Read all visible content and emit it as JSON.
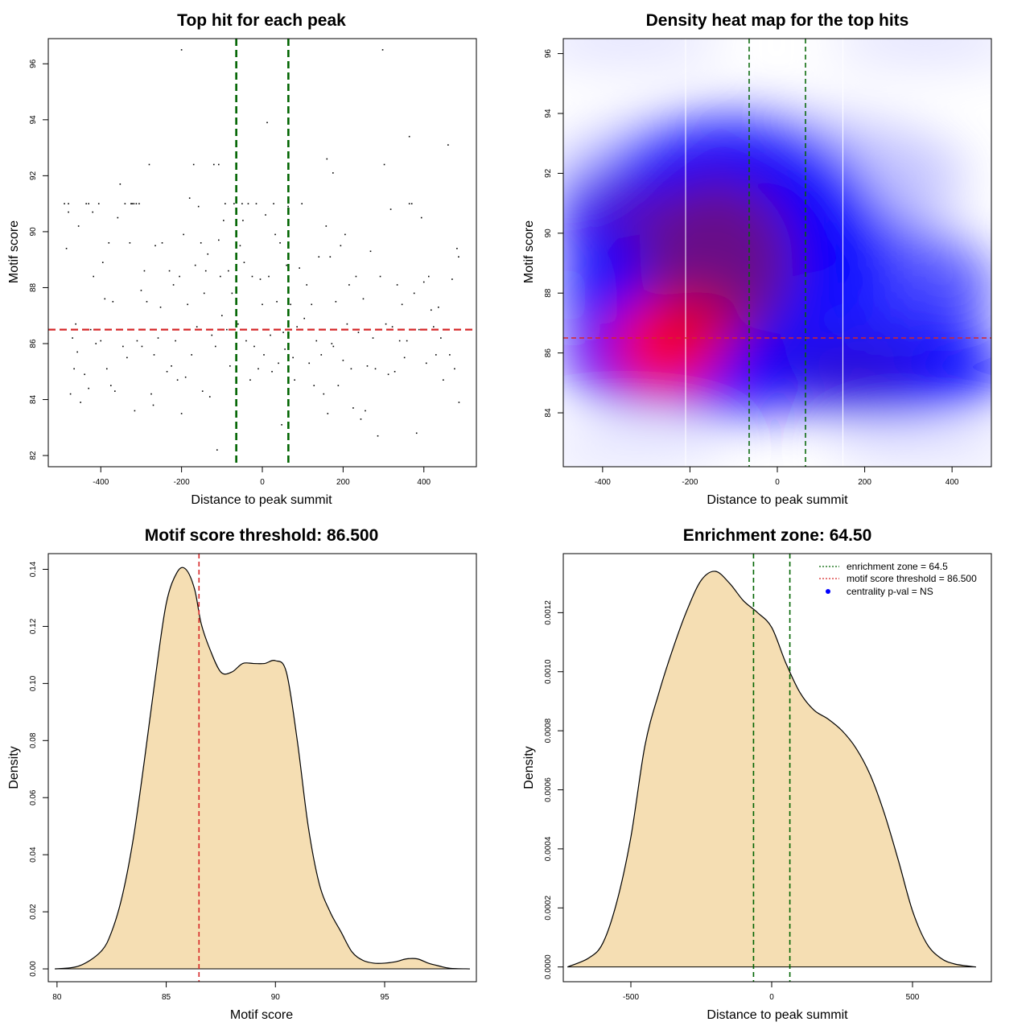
{
  "colors": {
    "axis": "#000000",
    "green_line": "#006400",
    "red_line": "#d62728",
    "density_fill": "#f5deb3",
    "heat_low": "#0000ff",
    "heat_high": "#ff0000",
    "points": "#000000"
  },
  "chart_data": [
    {
      "type": "scatter",
      "title": "Top hit for each peak",
      "xlabel": "Distance to peak summit",
      "ylabel": "Motif score",
      "xlim": [
        -530,
        530
      ],
      "ylim": [
        81.6,
        96.9
      ],
      "xticks": [
        -400,
        -200,
        0,
        200,
        400
      ],
      "yticks": [
        82,
        84,
        86,
        88,
        90,
        92,
        94,
        96
      ],
      "xtick_labels": [
        "-400",
        "-200",
        "0",
        "200",
        "400"
      ],
      "ytick_labels": [
        "82",
        "84",
        "86",
        "88",
        "90",
        "92",
        "94",
        "96"
      ],
      "vlines": [
        -64.5,
        64.5
      ],
      "hline": 86.5,
      "points": [
        [
          -490,
          91
        ],
        [
          -485,
          89.4
        ],
        [
          -480,
          91
        ],
        [
          -475,
          84.2
        ],
        [
          -470,
          86.2
        ],
        [
          -466,
          85.1
        ],
        [
          -462,
          86.7
        ],
        [
          -458,
          85.7
        ],
        [
          -455,
          90.2
        ],
        [
          -450,
          83.9
        ],
        [
          -440,
          84.9
        ],
        [
          -436,
          91
        ],
        [
          -430,
          84.4
        ],
        [
          -425,
          86.5
        ],
        [
          -418,
          88.4
        ],
        [
          -412,
          86
        ],
        [
          -405,
          91
        ],
        [
          -400,
          86.1
        ],
        [
          -395,
          88.9
        ],
        [
          -390,
          87.6
        ],
        [
          -385,
          85.1
        ],
        [
          -380,
          89.6
        ],
        [
          -375,
          84.5
        ],
        [
          -370,
          87.5
        ],
        [
          -365,
          84.3
        ],
        [
          -358,
          90.5
        ],
        [
          -352,
          91.7
        ],
        [
          -345,
          85.9
        ],
        [
          -340,
          91
        ],
        [
          -335,
          85.5
        ],
        [
          -328,
          89.6
        ],
        [
          -322,
          91
        ],
        [
          -316,
          83.6
        ],
        [
          -310,
          86.1
        ],
        [
          -305,
          91
        ],
        [
          -298,
          85.9
        ],
        [
          -292,
          88.6
        ],
        [
          -286,
          87.5
        ],
        [
          -280,
          92.4
        ],
        [
          -275,
          84.2
        ],
        [
          -270,
          83.8
        ],
        [
          -265,
          89.5
        ],
        [
          -258,
          86.2
        ],
        [
          -252,
          87.3
        ],
        [
          -248,
          89.6
        ],
        [
          -242,
          86.5
        ],
        [
          -236,
          85
        ],
        [
          -230,
          88.6
        ],
        [
          -225,
          85.2
        ],
        [
          -220,
          88.1
        ],
        [
          -215,
          86.1
        ],
        [
          -210,
          84.7
        ],
        [
          -205,
          88.4
        ],
        [
          -200,
          83.5
        ],
        [
          -195,
          89.9
        ],
        [
          -190,
          84.8
        ],
        [
          -185,
          87.4
        ],
        [
          -180,
          91.2
        ],
        [
          -175,
          85.6
        ],
        [
          -170,
          92.4
        ],
        [
          -166,
          88.8
        ],
        [
          -162,
          86.6
        ],
        [
          -158,
          90.9
        ],
        [
          -152,
          89.6
        ],
        [
          -148,
          84.3
        ],
        [
          -144,
          87.8
        ],
        [
          -140,
          88.6
        ],
        [
          -135,
          89.2
        ],
        [
          -130,
          84.1
        ],
        [
          -125,
          86.3
        ],
        [
          -120,
          92.4
        ],
        [
          -116,
          85.9
        ],
        [
          -112,
          82.2
        ],
        [
          -108,
          89.7
        ],
        [
          -104,
          88.4
        ],
        [
          -100,
          87
        ],
        [
          -96,
          90.4
        ],
        [
          -92,
          91
        ],
        [
          -88,
          86.5
        ],
        [
          -84,
          88.6
        ],
        [
          -80,
          85.2
        ],
        [
          -75,
          87.8
        ],
        [
          -70,
          91
        ],
        [
          -65,
          88.4
        ],
        [
          -60,
          86.7
        ],
        [
          -55,
          89.5
        ],
        [
          -50,
          91
        ],
        [
          -45,
          88.9
        ],
        [
          -40,
          86.1
        ],
        [
          -35,
          91
        ],
        [
          -30,
          84.7
        ],
        [
          -25,
          88.4
        ],
        [
          -20,
          85.9
        ],
        [
          -15,
          91
        ],
        [
          -10,
          85.1
        ],
        [
          -5,
          88.3
        ],
        [
          0,
          87.4
        ],
        [
          4,
          85.6
        ],
        [
          8,
          90.6
        ],
        [
          12,
          93.9
        ],
        [
          16,
          88.4
        ],
        [
          20,
          86.3
        ],
        [
          24,
          85
        ],
        [
          28,
          91
        ],
        [
          32,
          89.9
        ],
        [
          36,
          87.5
        ],
        [
          40,
          85.3
        ],
        [
          44,
          89.6
        ],
        [
          48,
          83.1
        ],
        [
          52,
          86.4
        ],
        [
          56,
          85.8
        ],
        [
          60,
          88.8
        ],
        [
          64,
          90.9
        ],
        [
          70,
          87.4
        ],
        [
          76,
          85.5
        ],
        [
          80,
          84.7
        ],
        [
          86,
          86.6
        ],
        [
          92,
          88.7
        ],
        [
          98,
          91
        ],
        [
          104,
          86.9
        ],
        [
          110,
          88.1
        ],
        [
          116,
          85.3
        ],
        [
          122,
          87.4
        ],
        [
          128,
          84.5
        ],
        [
          134,
          86.1
        ],
        [
          140,
          89.1
        ],
        [
          146,
          85.6
        ],
        [
          152,
          84.2
        ],
        [
          158,
          90.2
        ],
        [
          162,
          83.5
        ],
        [
          168,
          89.1
        ],
        [
          172,
          86
        ],
        [
          176,
          85.9
        ],
        [
          182,
          87.5
        ],
        [
          188,
          84.5
        ],
        [
          194,
          89.5
        ],
        [
          200,
          85.4
        ],
        [
          205,
          89.9
        ],
        [
          210,
          86.7
        ],
        [
          215,
          88.1
        ],
        [
          220,
          85.1
        ],
        [
          225,
          83.7
        ],
        [
          232,
          88.4
        ],
        [
          238,
          86.4
        ],
        [
          244,
          83.3
        ],
        [
          250,
          87.6
        ],
        [
          255,
          83.6
        ],
        [
          260,
          85.2
        ],
        [
          268,
          89.3
        ],
        [
          274,
          86.2
        ],
        [
          280,
          85.1
        ],
        [
          286,
          82.7
        ],
        [
          292,
          88.4
        ],
        [
          298,
          96.5
        ],
        [
          302,
          92.4
        ],
        [
          306,
          86.7
        ],
        [
          312,
          84.9
        ],
        [
          318,
          90.8
        ],
        [
          322,
          86.6
        ],
        [
          328,
          85
        ],
        [
          334,
          88.1
        ],
        [
          340,
          86.1
        ],
        [
          346,
          87.4
        ],
        [
          352,
          85.5
        ],
        [
          358,
          86.1
        ],
        [
          364,
          93.4
        ],
        [
          370,
          91
        ],
        [
          376,
          87.8
        ],
        [
          382,
          82.8
        ],
        [
          388,
          86.5
        ],
        [
          394,
          90.5
        ],
        [
          400,
          88.2
        ],
        [
          406,
          85.3
        ],
        [
          412,
          88.4
        ],
        [
          418,
          87.2
        ],
        [
          424,
          86.6
        ],
        [
          430,
          85.6
        ],
        [
          436,
          87.3
        ],
        [
          442,
          86.2
        ],
        [
          448,
          84.7
        ],
        [
          454,
          86.5
        ],
        [
          460,
          93.1
        ],
        [
          464,
          85.6
        ],
        [
          470,
          88.3
        ],
        [
          476,
          85.1
        ],
        [
          482,
          89.4
        ],
        [
          487,
          83.9
        ],
        [
          -200,
          96.5
        ],
        [
          -48,
          90.4
        ],
        [
          -420,
          90.7
        ],
        [
          -480,
          90.7
        ],
        [
          -325,
          91
        ],
        [
          -318,
          91
        ],
        [
          -312,
          91
        ],
        [
          -430,
          91
        ],
        [
          -300,
          87.9
        ],
        [
          -108,
          92.4
        ],
        [
          -268,
          85.6
        ],
        [
          160,
          92.6
        ],
        [
          175,
          92.1
        ],
        [
          364,
          91
        ],
        [
          486,
          89.1
        ]
      ]
    },
    {
      "type": "heatmap",
      "title": "Density heat map for the top hits",
      "xlabel": "Distance to peak summit",
      "ylabel": "Motif score",
      "xlim": [
        -490,
        490
      ],
      "ylim": [
        82.2,
        96.5
      ],
      "xticks": [
        -400,
        -200,
        0,
        200,
        400
      ],
      "yticks": [
        84,
        86,
        88,
        90,
        92,
        94,
        96
      ],
      "xtick_labels": [
        "-400",
        "-200",
        "0",
        "200",
        "400"
      ],
      "ytick_labels": [
        "84",
        "86",
        "88",
        "90",
        "92",
        "94",
        "96"
      ],
      "vlines_green": [
        -64.5,
        64.5
      ],
      "vlines_white": [
        -210,
        150
      ],
      "hline": 86.5,
      "density_peaks": [
        {
          "x": -230,
          "y": 86.2,
          "intensity": 1.0
        },
        {
          "x": -120,
          "y": 88.8,
          "intensity": 0.55
        },
        {
          "x": -360,
          "y": 90.4,
          "intensity": 0.5
        },
        {
          "x": 120,
          "y": 85.5,
          "intensity": 0.45
        },
        {
          "x": 280,
          "y": 85.2,
          "intensity": 0.4
        }
      ]
    },
    {
      "type": "area",
      "title": "Motif score threshold: 86.500",
      "xlabel": "Motif score",
      "ylabel": "Density",
      "xlim": [
        79.6,
        99.2
      ],
      "ylim": [
        -0.0045,
        0.1455
      ],
      "xticks": [
        80,
        85,
        90,
        95
      ],
      "yticks": [
        0.0,
        0.02,
        0.04,
        0.06,
        0.08,
        0.1,
        0.12,
        0.14
      ],
      "xtick_labels": [
        "80",
        "85",
        "90",
        "95"
      ],
      "ytick_labels": [
        "0.00",
        "0.02",
        "0.04",
        "0.06",
        "0.08",
        "0.10",
        "0.12",
        "0.14"
      ],
      "vline": 86.5,
      "x": [
        79.9,
        81.0,
        82.0,
        82.5,
        83.0,
        83.5,
        84.0,
        84.5,
        85.0,
        85.5,
        85.9,
        86.3,
        86.6,
        87.0,
        87.5,
        88.0,
        88.5,
        89.0,
        89.5,
        90.0,
        90.5,
        91.0,
        91.5,
        92.0,
        92.5,
        93.0,
        93.5,
        94.0,
        94.5,
        95.0,
        95.5,
        96.0,
        96.5,
        97.0,
        97.5,
        98.0,
        98.9
      ],
      "values": [
        0.0,
        0.001,
        0.006,
        0.013,
        0.026,
        0.046,
        0.073,
        0.102,
        0.128,
        0.139,
        0.14,
        0.133,
        0.121,
        0.112,
        0.104,
        0.104,
        0.107,
        0.107,
        0.107,
        0.108,
        0.104,
        0.08,
        0.05,
        0.03,
        0.02,
        0.013,
        0.006,
        0.003,
        0.002,
        0.002,
        0.0025,
        0.0035,
        0.0035,
        0.002,
        0.001,
        0.0002,
        0.0
      ]
    },
    {
      "type": "area",
      "title": "Enrichment zone: 64.50",
      "xlabel": "Distance to peak summit",
      "ylabel": "Density",
      "xlim": [
        -740,
        780
      ],
      "ylim": [
        -5e-05,
        0.0014
      ],
      "xticks": [
        -500,
        0,
        500
      ],
      "yticks": [
        0.0,
        0.0002,
        0.0004,
        0.0006,
        0.0008,
        0.001,
        0.0012
      ],
      "xtick_labels": [
        "-500",
        "0",
        "500"
      ],
      "ytick_labels": [
        "0.0000",
        "0.0002",
        "0.0004",
        "0.0006",
        "0.0008",
        "0.0010",
        "0.0012"
      ],
      "vlines": [
        -64.5,
        64.5
      ],
      "x": [
        -725,
        -650,
        -600,
        -550,
        -500,
        -450,
        -400,
        -350,
        -300,
        -250,
        -200,
        -150,
        -100,
        -50,
        0,
        50,
        100,
        150,
        200,
        250,
        300,
        350,
        400,
        450,
        500,
        550,
        600,
        650,
        725
      ],
      "values": [
        0.0,
        3e-05,
        8e-05,
        0.00022,
        0.00044,
        0.00075,
        0.00093,
        0.00108,
        0.00121,
        0.00131,
        0.00134,
        0.0013,
        0.00124,
        0.0012,
        0.00115,
        0.00103,
        0.00093,
        0.00087,
        0.00084,
        0.0008,
        0.00074,
        0.00065,
        0.00052,
        0.00036,
        0.00019,
        8e-05,
        3e-05,
        1e-05,
        0.0
      ],
      "legend": [
        {
          "label": "enrichment zone = 64.5",
          "style": "green-dotted"
        },
        {
          "label": "motif score threshold = 86.500",
          "style": "red-dotted"
        },
        {
          "label": "centrality p-val = NS",
          "style": "blue-dot"
        }
      ],
      "legend_position": "top-right"
    }
  ]
}
